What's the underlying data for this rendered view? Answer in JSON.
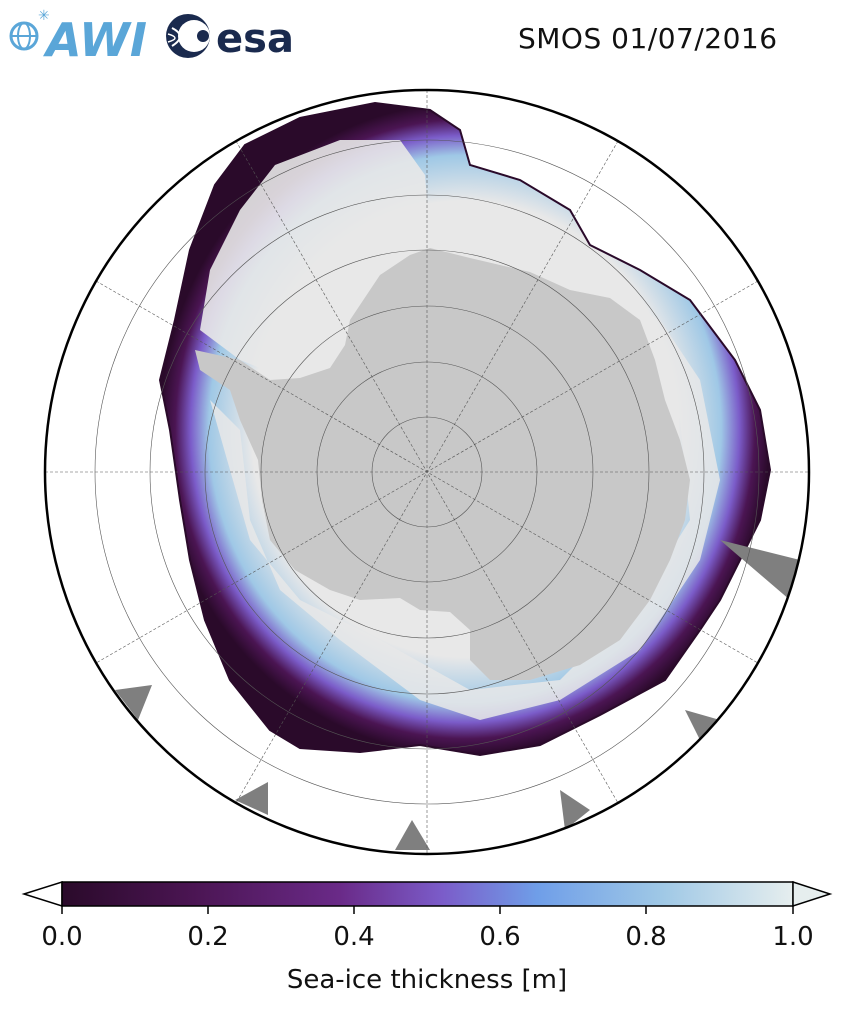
{
  "title": "SMOS 01/07/2016",
  "logos": {
    "awi_text": "AWI",
    "esa_text": "esa"
  },
  "colorbar": {
    "label": "Sea-ice thickness [m]",
    "ticks": [
      "0.0",
      "0.2",
      "0.4",
      "0.6",
      "0.8",
      "1.0"
    ],
    "range": [
      0.0,
      1.0
    ],
    "extend": "both",
    "colors": [
      "#2a0a2a",
      "#4b1553",
      "#6a2a88",
      "#7b5cc9",
      "#6f9ee8",
      "#9fc8e6",
      "#e6eeee"
    ]
  },
  "map": {
    "projection": "south polar stereographic",
    "land_color": "#c8c8c8",
    "ice_high_color": "#e8e8e8",
    "ice_edge_color": "#4b1553",
    "nodata_color": "#7f7f7f"
  }
}
